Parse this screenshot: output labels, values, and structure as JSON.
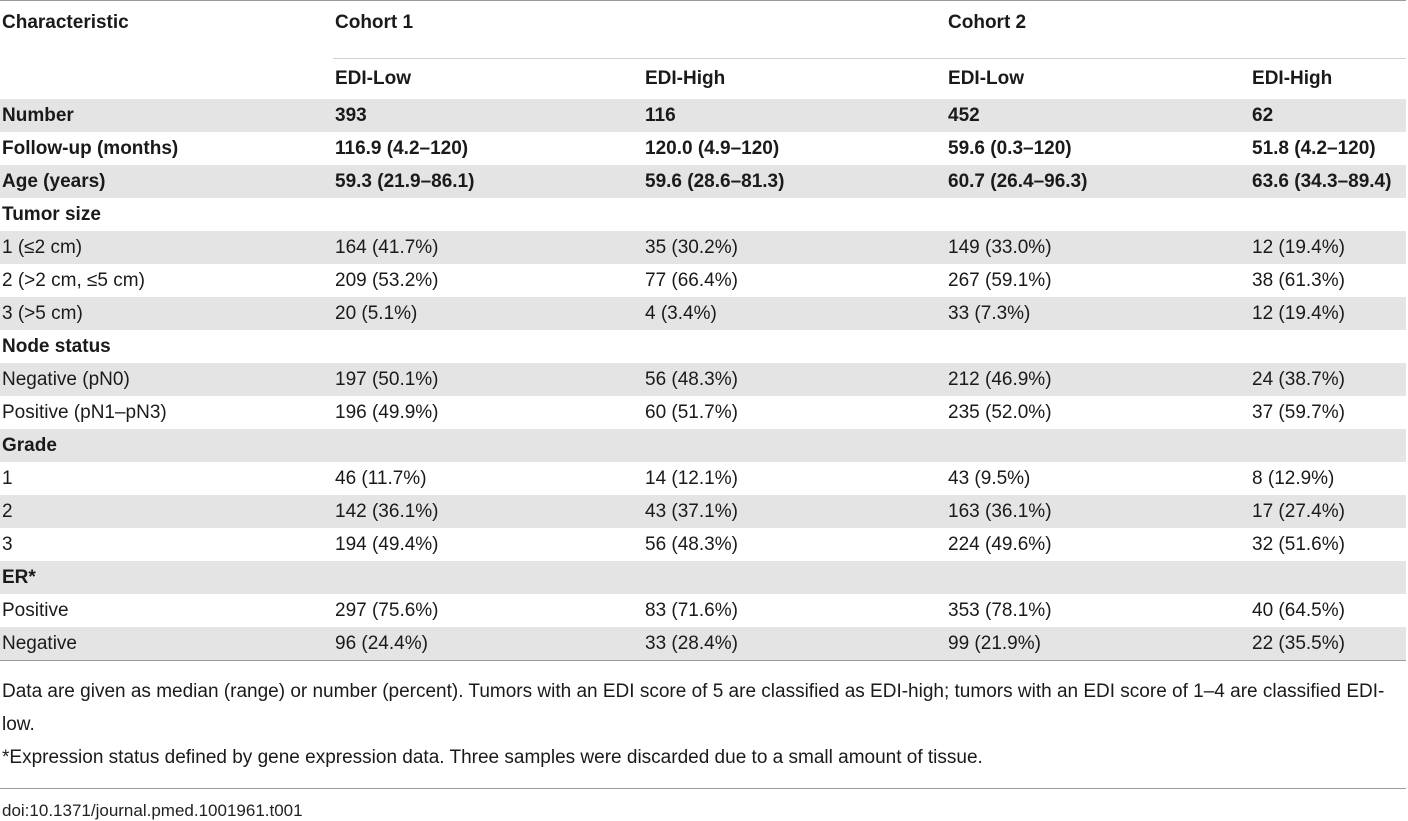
{
  "table": {
    "header": {
      "characteristic": "Characteristic",
      "cohort1": "Cohort 1",
      "cohort2": "Cohort 2",
      "sub": [
        "EDI-Low",
        "EDI-High",
        "EDI-Low",
        "EDI-High"
      ]
    },
    "rows": [
      {
        "label": "Number",
        "section": true,
        "shade": true,
        "cells": [
          "393",
          "116",
          "452",
          "62"
        ]
      },
      {
        "label": "Follow-up (months)",
        "section": true,
        "shade": false,
        "cells": [
          "116.9 (4.2–120)",
          "120.0 (4.9–120)",
          "59.6 (0.3–120)",
          "51.8 (4.2–120)"
        ]
      },
      {
        "label": "Age (years)",
        "section": true,
        "shade": true,
        "cells": [
          "59.3 (21.9–86.1)",
          "59.6 (28.6–81.3)",
          "60.7 (26.4–96.3)",
          "63.6 (34.3–89.4)"
        ]
      },
      {
        "label": "Tumor size",
        "section": true,
        "shade": false,
        "cells": [
          "",
          "",
          "",
          ""
        ]
      },
      {
        "label": "1 (≤2 cm)",
        "section": false,
        "shade": true,
        "cells": [
          "164 (41.7%)",
          "35 (30.2%)",
          "149 (33.0%)",
          "12 (19.4%)"
        ]
      },
      {
        "label": "2 (>2 cm, ≤5 cm)",
        "section": false,
        "shade": false,
        "cells": [
          "209 (53.2%)",
          "77 (66.4%)",
          "267 (59.1%)",
          "38 (61.3%)"
        ]
      },
      {
        "label": "3 (>5 cm)",
        "section": false,
        "shade": true,
        "cells": [
          "20 (5.1%)",
          "4 (3.4%)",
          "33 (7.3%)",
          "12 (19.4%)"
        ]
      },
      {
        "label": "Node status",
        "section": true,
        "shade": false,
        "cells": [
          "",
          "",
          "",
          ""
        ]
      },
      {
        "label": "Negative (pN0)",
        "section": false,
        "shade": true,
        "cells": [
          "197 (50.1%)",
          "56 (48.3%)",
          "212 (46.9%)",
          "24 (38.7%)"
        ]
      },
      {
        "label": "Positive (pN1–pN3)",
        "section": false,
        "shade": false,
        "cells": [
          "196 (49.9%)",
          "60 (51.7%)",
          "235 (52.0%)",
          "37 (59.7%)"
        ]
      },
      {
        "label": "Grade",
        "section": true,
        "shade": true,
        "cells": [
          "",
          "",
          "",
          ""
        ]
      },
      {
        "label": "1",
        "section": false,
        "shade": false,
        "cells": [
          "46 (11.7%)",
          "14 (12.1%)",
          "43 (9.5%)",
          "8 (12.9%)"
        ]
      },
      {
        "label": "2",
        "section": false,
        "shade": true,
        "cells": [
          "142 (36.1%)",
          "43 (37.1%)",
          "163 (36.1%)",
          "17 (27.4%)"
        ]
      },
      {
        "label": "3",
        "section": false,
        "shade": false,
        "cells": [
          "194 (49.4%)",
          "56 (48.3%)",
          "224 (49.6%)",
          "32 (51.6%)"
        ]
      },
      {
        "label": "ER*",
        "section": true,
        "shade": true,
        "cells": [
          "",
          "",
          "",
          ""
        ]
      },
      {
        "label": "Positive",
        "section": false,
        "shade": false,
        "cells": [
          "297 (75.6%)",
          "83 (71.6%)",
          "353 (78.1%)",
          "40 (64.5%)"
        ]
      },
      {
        "label": "Negative",
        "section": false,
        "shade": true,
        "cells": [
          "96 (24.4%)",
          "33 (28.4%)",
          "99 (21.9%)",
          "22 (35.5%)"
        ]
      }
    ]
  },
  "notes": {
    "line1": "Data are given as median (range) or number (percent). Tumors with an EDI score of 5 are classified as EDI-high; tumors with an EDI score of 1–4 are classified EDI-low.",
    "line2": "*Expression status defined by gene expression data. Three samples were discarded due to a small amount of tissue."
  },
  "doi": "doi:10.1371/journal.pmed.1001961.t001"
}
